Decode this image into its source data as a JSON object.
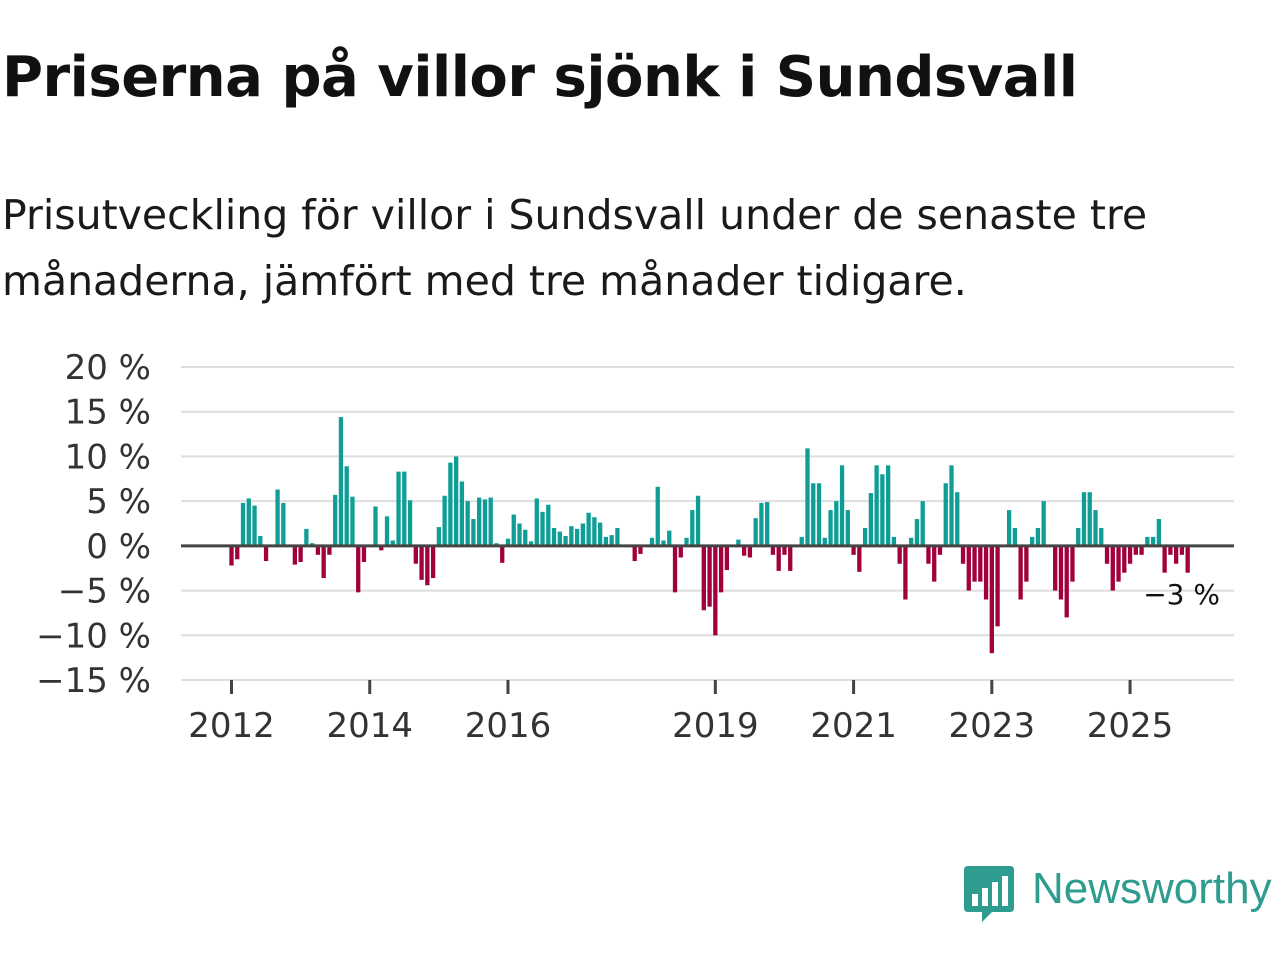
{
  "header": {
    "title": "Priserna på villor sjönk i Sundsvall",
    "subtitle": "Prisutveckling för villor i Sundsvall under de senaste tre månaderna, jämfört med tre månader tidigare."
  },
  "brand": {
    "name": "Newsworthy"
  },
  "colors": {
    "positive": "#0f9e96",
    "negative": "#a1003c",
    "grid": "#dedede",
    "zero_line": "#444444",
    "brand": "#2e9c8f"
  },
  "chart_data": {
    "type": "bar",
    "title": "Priserna på villor sjönk i Sundsvall",
    "subtitle": "Prisutveckling för villor i Sundsvall under de senaste tre månaderna, jämfört med tre månader tidigare.",
    "xlabel": "",
    "ylabel": "",
    "ylim": [
      -15,
      20
    ],
    "y_ticks": [
      20,
      15,
      10,
      5,
      0,
      -5,
      -10,
      -15
    ],
    "y_tick_labels": [
      "20 %",
      "15 %",
      "10 %",
      "5 %",
      "0 %",
      "−5 %",
      "−10 %",
      "−15 %"
    ],
    "x_tick_labels": [
      {
        "label": "2012",
        "month_index": 0
      },
      {
        "label": "2014",
        "month_index": 24
      },
      {
        "label": "2016",
        "month_index": 48
      },
      {
        "label": "2019",
        "month_index": 84
      },
      {
        "label": "2021",
        "month_index": 108
      },
      {
        "label": "2023",
        "month_index": 132
      },
      {
        "label": "2025",
        "month_index": 156
      }
    ],
    "x_start": "2012-01",
    "frequency": "monthly",
    "last_value_label": "−3 %",
    "grid": true,
    "values": [
      -2.2,
      -1.5,
      4.8,
      5.3,
      4.5,
      1.1,
      -1.7,
      0,
      6.3,
      4.8,
      0,
      -2.1,
      -1.8,
      1.9,
      0.3,
      -1.0,
      -3.6,
      -1.0,
      5.7,
      14.4,
      8.9,
      5.5,
      -5.2,
      -1.8,
      0,
      4.4,
      -0.5,
      3.3,
      0.6,
      8.3,
      8.3,
      5.1,
      -2.0,
      -3.8,
      -4.4,
      -3.6,
      2.1,
      5.6,
      9.3,
      10.0,
      7.2,
      5.0,
      3.0,
      5.4,
      5.2,
      5.4,
      0.3,
      -1.9,
      0.8,
      3.5,
      2.5,
      1.8,
      0.5,
      5.3,
      3.8,
      4.6,
      2.0,
      1.6,
      1.1,
      2.2,
      1.9,
      2.5,
      3.7,
      3.2,
      2.6,
      1.0,
      1.2,
      2.0,
      0,
      0,
      -1.7,
      -0.9,
      0,
      0.9,
      6.6,
      0.6,
      1.7,
      -5.2,
      -1.3,
      0.9,
      4.0,
      5.6,
      -7.2,
      -6.8,
      -10.0,
      -5.2,
      -2.7,
      0,
      0.7,
      -1.1,
      -1.3,
      3.1,
      4.8,
      4.9,
      -1.0,
      -2.8,
      -1.0,
      -2.8,
      0,
      1.0,
      10.9,
      7.0,
      7.0,
      0.9,
      4.0,
      5.0,
      9.0,
      4.0,
      -1.0,
      -2.9,
      2.0,
      5.9,
      9.0,
      8.0,
      9.0,
      1.0,
      -2.0,
      -6.0,
      0.9,
      3.0,
      5.0,
      -2.0,
      -4.0,
      -1.0,
      7.0,
      9.0,
      6.0,
      -2.0,
      -5.0,
      -4.0,
      -4.0,
      -6.0,
      -12.0,
      -9.0,
      0,
      4.0,
      2.0,
      -6.0,
      -4.0,
      1.0,
      2.0,
      5.0,
      0,
      -5.0,
      -6.0,
      -8.0,
      -4.0,
      2.0,
      6.0,
      6.0,
      4.0,
      2.0,
      -2.0,
      -5.0,
      -4.0,
      -3.0,
      -2.0,
      -1.0,
      -1.0,
      1.0,
      1.0,
      3.0,
      -3.0,
      -1.0,
      -2.0,
      -1.0,
      -3.0
    ]
  }
}
